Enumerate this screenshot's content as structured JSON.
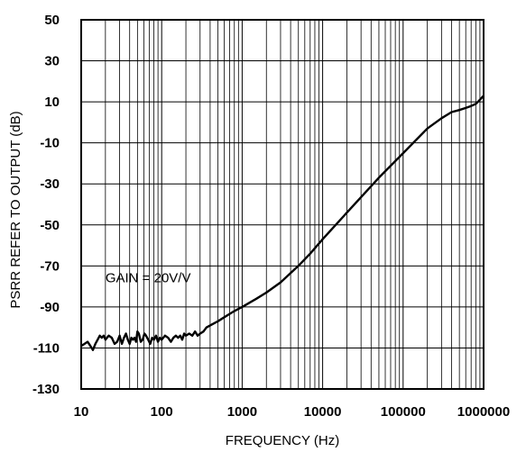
{
  "chart_data": {
    "type": "line",
    "xscale": "log",
    "xlim": [
      10,
      1000000
    ],
    "ylim": [
      -130,
      50
    ],
    "x_ticks": [
      "10",
      "100",
      "1000",
      "10000",
      "100000",
      "1000000"
    ],
    "y_ticks": [
      "50",
      "30",
      "10",
      "-10",
      "-30",
      "-50",
      "-70",
      "-90",
      "-110",
      "-130"
    ],
    "xlabel": "FREQUENCY (Hz)",
    "ylabel": "PSRR REFER TO OUTPUT  (dB)",
    "annotation": "GAIN = 20V/V",
    "grid": true,
    "series": [
      {
        "x": [
          10,
          11,
          12,
          13,
          14,
          15,
          16,
          17,
          18,
          19,
          20,
          22,
          24,
          26,
          28,
          30,
          32,
          34,
          36,
          38,
          40,
          42,
          44,
          46,
          48,
          50,
          52,
          55,
          58,
          61,
          64,
          68,
          72,
          76,
          80,
          85,
          90,
          95,
          100,
          110,
          120,
          130,
          140,
          150,
          160,
          170,
          180,
          190,
          200,
          220,
          240,
          260,
          280,
          300,
          330,
          360,
          400,
          500,
          600,
          800,
          1000,
          1500,
          2000,
          3000,
          5000,
          7000,
          10000,
          20000,
          50000,
          100000,
          200000,
          300000,
          400000,
          500000,
          600000,
          700000,
          800000,
          900000,
          1000000
        ],
        "y": [
          -109,
          -108,
          -107,
          -109,
          -111,
          -108,
          -106,
          -104,
          -105,
          -104,
          -106,
          -104,
          -105,
          -108,
          -107,
          -104,
          -108,
          -105,
          -103,
          -106,
          -108,
          -105,
          -106,
          -105,
          -107,
          -102,
          -103,
          -107,
          -106,
          -103,
          -104,
          -106,
          -108,
          -105,
          -106,
          -104,
          -107,
          -105,
          -106,
          -104,
          -105,
          -107,
          -105,
          -104,
          -105,
          -104,
          -106,
          -103,
          -104,
          -103,
          -104,
          -102,
          -104,
          -103,
          -102,
          -100,
          -99,
          -97,
          -95,
          -92,
          -90,
          -86,
          -83,
          -78,
          -70,
          -64,
          -57,
          -44,
          -27,
          -15,
          -3,
          2,
          5,
          6,
          7,
          8,
          9,
          11,
          13
        ]
      }
    ]
  }
}
